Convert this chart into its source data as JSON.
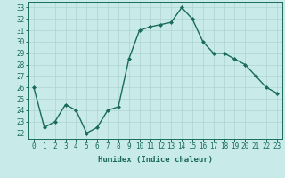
{
  "x": [
    0,
    1,
    2,
    3,
    4,
    5,
    6,
    7,
    8,
    9,
    10,
    11,
    12,
    13,
    14,
    15,
    16,
    17,
    18,
    19,
    20,
    21,
    22,
    23
  ],
  "y": [
    26,
    22.5,
    23,
    24.5,
    24,
    22,
    22.5,
    24,
    24.3,
    28.5,
    31,
    31.3,
    31.5,
    31.7,
    33,
    32,
    30,
    29,
    29,
    28.5,
    28,
    27,
    26,
    25.5
  ],
  "line_color": "#1a6b5a",
  "marker": "D",
  "marker_size": 2.0,
  "bg_color": "#c8eae8",
  "grid_color": "#aed4d0",
  "xlabel": "Humidex (Indice chaleur)",
  "ylim": [
    21.5,
    33.5
  ],
  "xlim": [
    -0.5,
    23.5
  ],
  "yticks": [
    22,
    23,
    24,
    25,
    26,
    27,
    28,
    29,
    30,
    31,
    32,
    33
  ],
  "xticks": [
    0,
    1,
    2,
    3,
    4,
    5,
    6,
    7,
    8,
    9,
    10,
    11,
    12,
    13,
    14,
    15,
    16,
    17,
    18,
    19,
    20,
    21,
    22,
    23
  ],
  "xlabel_fontsize": 6.5,
  "tick_fontsize": 5.5,
  "line_width": 1.0
}
